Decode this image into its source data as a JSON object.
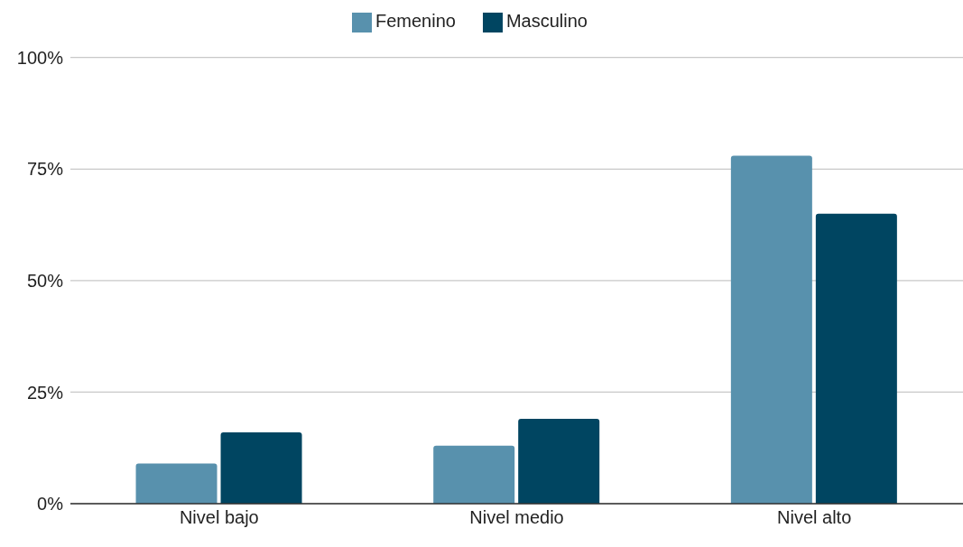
{
  "chart_data": {
    "type": "bar",
    "categories": [
      "Nivel bajo",
      "Nivel medio",
      "Nivel alto"
    ],
    "series": [
      {
        "name": "Femenino",
        "color": "#5891ad",
        "values": [
          9,
          13,
          78
        ]
      },
      {
        "name": "Masculino",
        "color": "#004561",
        "values": [
          16,
          19,
          65
        ]
      }
    ],
    "ylim": [
      0,
      100
    ],
    "yticks": [
      {
        "value": 0,
        "label": "0%"
      },
      {
        "value": 25,
        "label": "25%"
      },
      {
        "value": 50,
        "label": "50%"
      },
      {
        "value": 75,
        "label": "75%"
      },
      {
        "value": 100,
        "label": "100%"
      }
    ],
    "grid": "y",
    "legend": "top"
  }
}
